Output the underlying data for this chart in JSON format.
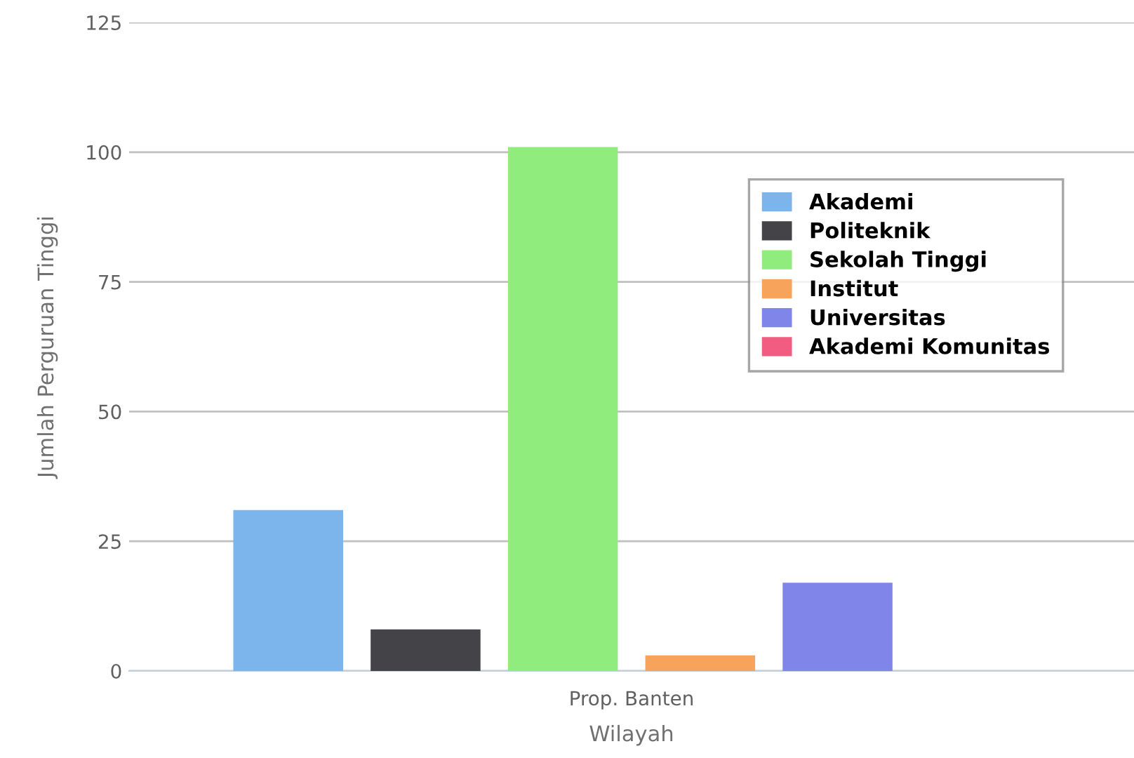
{
  "chart_data": {
    "type": "bar",
    "xlabel": "Wilayah",
    "ylabel": "Jumlah Perguruan Tinggi",
    "categories": [
      "Prop. Banten"
    ],
    "series": [
      {
        "name": "Akademi",
        "color": "#7cb5ec",
        "values": [
          31
        ]
      },
      {
        "name": "Politeknik",
        "color": "#434348",
        "values": [
          8
        ]
      },
      {
        "name": "Sekolah Tinggi",
        "color": "#90ed7d",
        "values": [
          101
        ]
      },
      {
        "name": "Institut",
        "color": "#f7a35c",
        "values": [
          3
        ]
      },
      {
        "name": "Universitas",
        "color": "#8085e9",
        "values": [
          17
        ]
      },
      {
        "name": "Akademi Komunitas",
        "color": "#f15c80",
        "values": [
          0
        ]
      }
    ],
    "ylim": [
      0,
      125
    ],
    "yticks": [
      0,
      25,
      50,
      75,
      100,
      125
    ],
    "grid": "y",
    "legend": "right"
  }
}
